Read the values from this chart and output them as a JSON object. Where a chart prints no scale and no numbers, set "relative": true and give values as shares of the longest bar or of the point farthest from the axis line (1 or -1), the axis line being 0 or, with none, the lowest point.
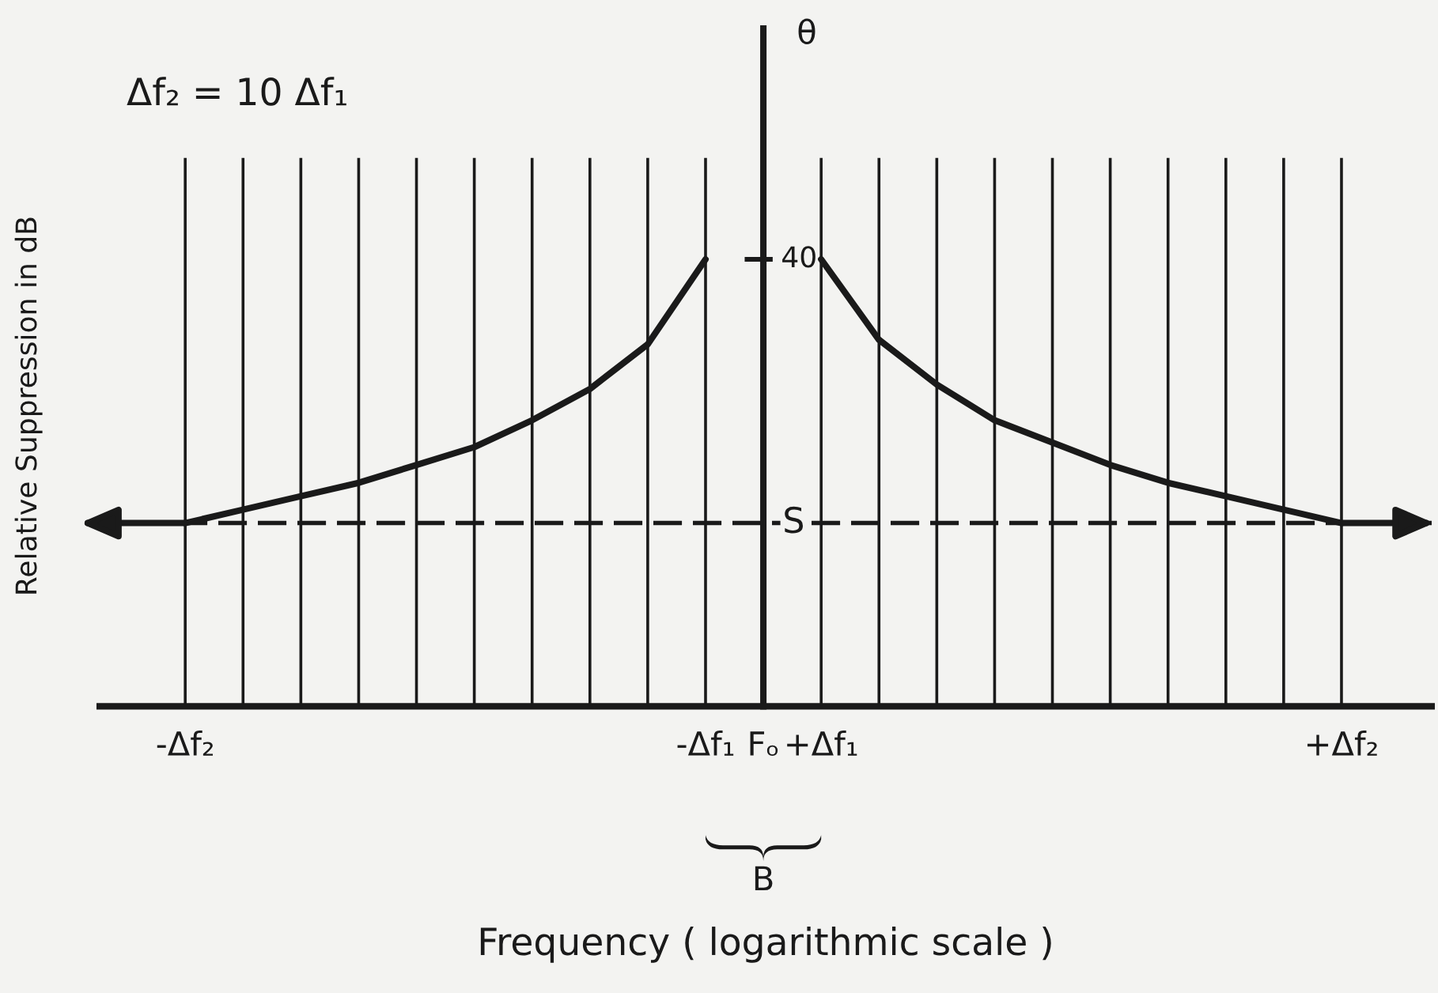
{
  "chart_data": {
    "type": "line",
    "xlabel": "Frequency ( logarithmic scale )",
    "ylabel": "Relative Suppression in dB",
    "annotations": [
      "Δf₂ = 10 Δf₁",
      "θ",
      "40",
      "B"
    ],
    "relative": true,
    "categories": [
      "-Δf₂",
      null,
      null,
      null,
      null,
      null,
      null,
      null,
      null,
      "-Δf₁",
      "Fₒ",
      "+Δf₁",
      null,
      null,
      null,
      null,
      null,
      null,
      null,
      null,
      "+Δf₂"
    ],
    "grid": "x",
    "line_style": "solid",
    "series": [
      {
        "color": "#1a1a1a",
        "values": [
          0.41,
          0.44,
          0.47,
          0.5,
          0.54,
          0.58,
          0.64,
          0.71,
          0.81,
          1,
          null,
          null,
          null,
          null,
          null,
          null,
          null,
          null,
          null,
          null,
          null
        ]
      },
      {
        "color": "#1a1a1a",
        "values": [
          null,
          null,
          null,
          null,
          null,
          null,
          null,
          null,
          null,
          null,
          null,
          1,
          0.82,
          0.72,
          0.64,
          0.59,
          0.54,
          0.5,
          0.47,
          0.44,
          0.41
        ]
      }
    ],
    "ref_lines": [
      {
        "axis": "y",
        "value": 0.41,
        "label": "S",
        "line_style": "dashed",
        "color": "#1a1a1a"
      }
    ]
  }
}
